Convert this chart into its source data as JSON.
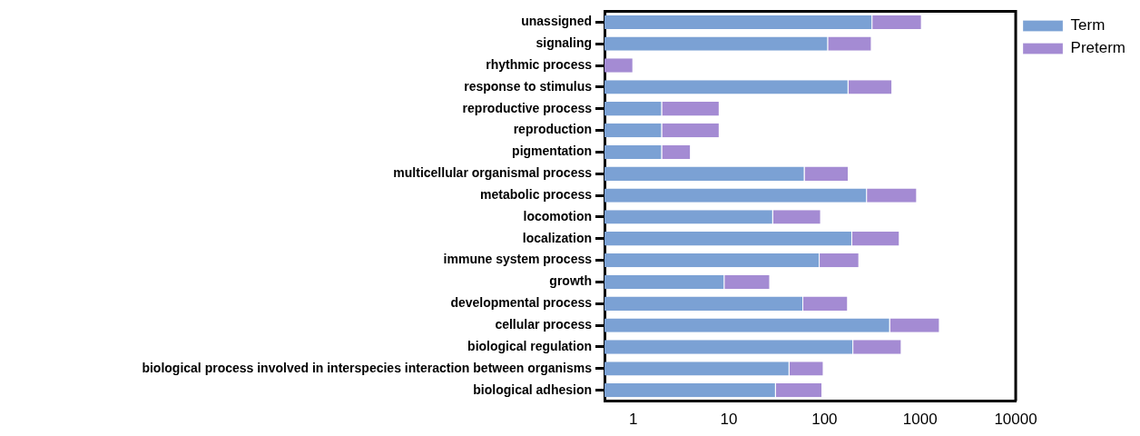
{
  "chart_data": {
    "type": "bar",
    "orientation": "horizontal",
    "stacked": true,
    "log": "x",
    "categories": [
      "unassigned",
      "signaling",
      "rhythmic process",
      "response to stimulus",
      "reproductive process",
      "reproduction",
      "pigmentation",
      "multicellular organismal process",
      "metabolic process",
      "locomotion",
      "localization",
      "immune system process",
      "growth",
      "developmental process",
      "cellular process",
      "biological regulation",
      "biological process involved in interspecies interaction between organisms",
      "biological adhesion"
    ],
    "series": [
      {
        "name": "Term",
        "color": "#7ba1d4",
        "values": [
          317,
          109,
          null,
          178,
          2,
          2,
          2,
          62,
          278,
          29,
          195,
          89,
          9,
          60,
          485,
          200,
          43,
          31
        ]
      },
      {
        "name": "Preterm",
        "color": "#a48bd3",
        "values": [
          726,
          203,
          1,
          334,
          6,
          6,
          2,
          117,
          651,
          63,
          417,
          142,
          18,
          116,
          1122,
          441,
          55,
          64
        ]
      }
    ],
    "xlim": [
      0.5,
      10000
    ],
    "xticks": [
      1,
      10,
      100,
      1000,
      10000
    ],
    "grid": false,
    "legend": "top right"
  }
}
